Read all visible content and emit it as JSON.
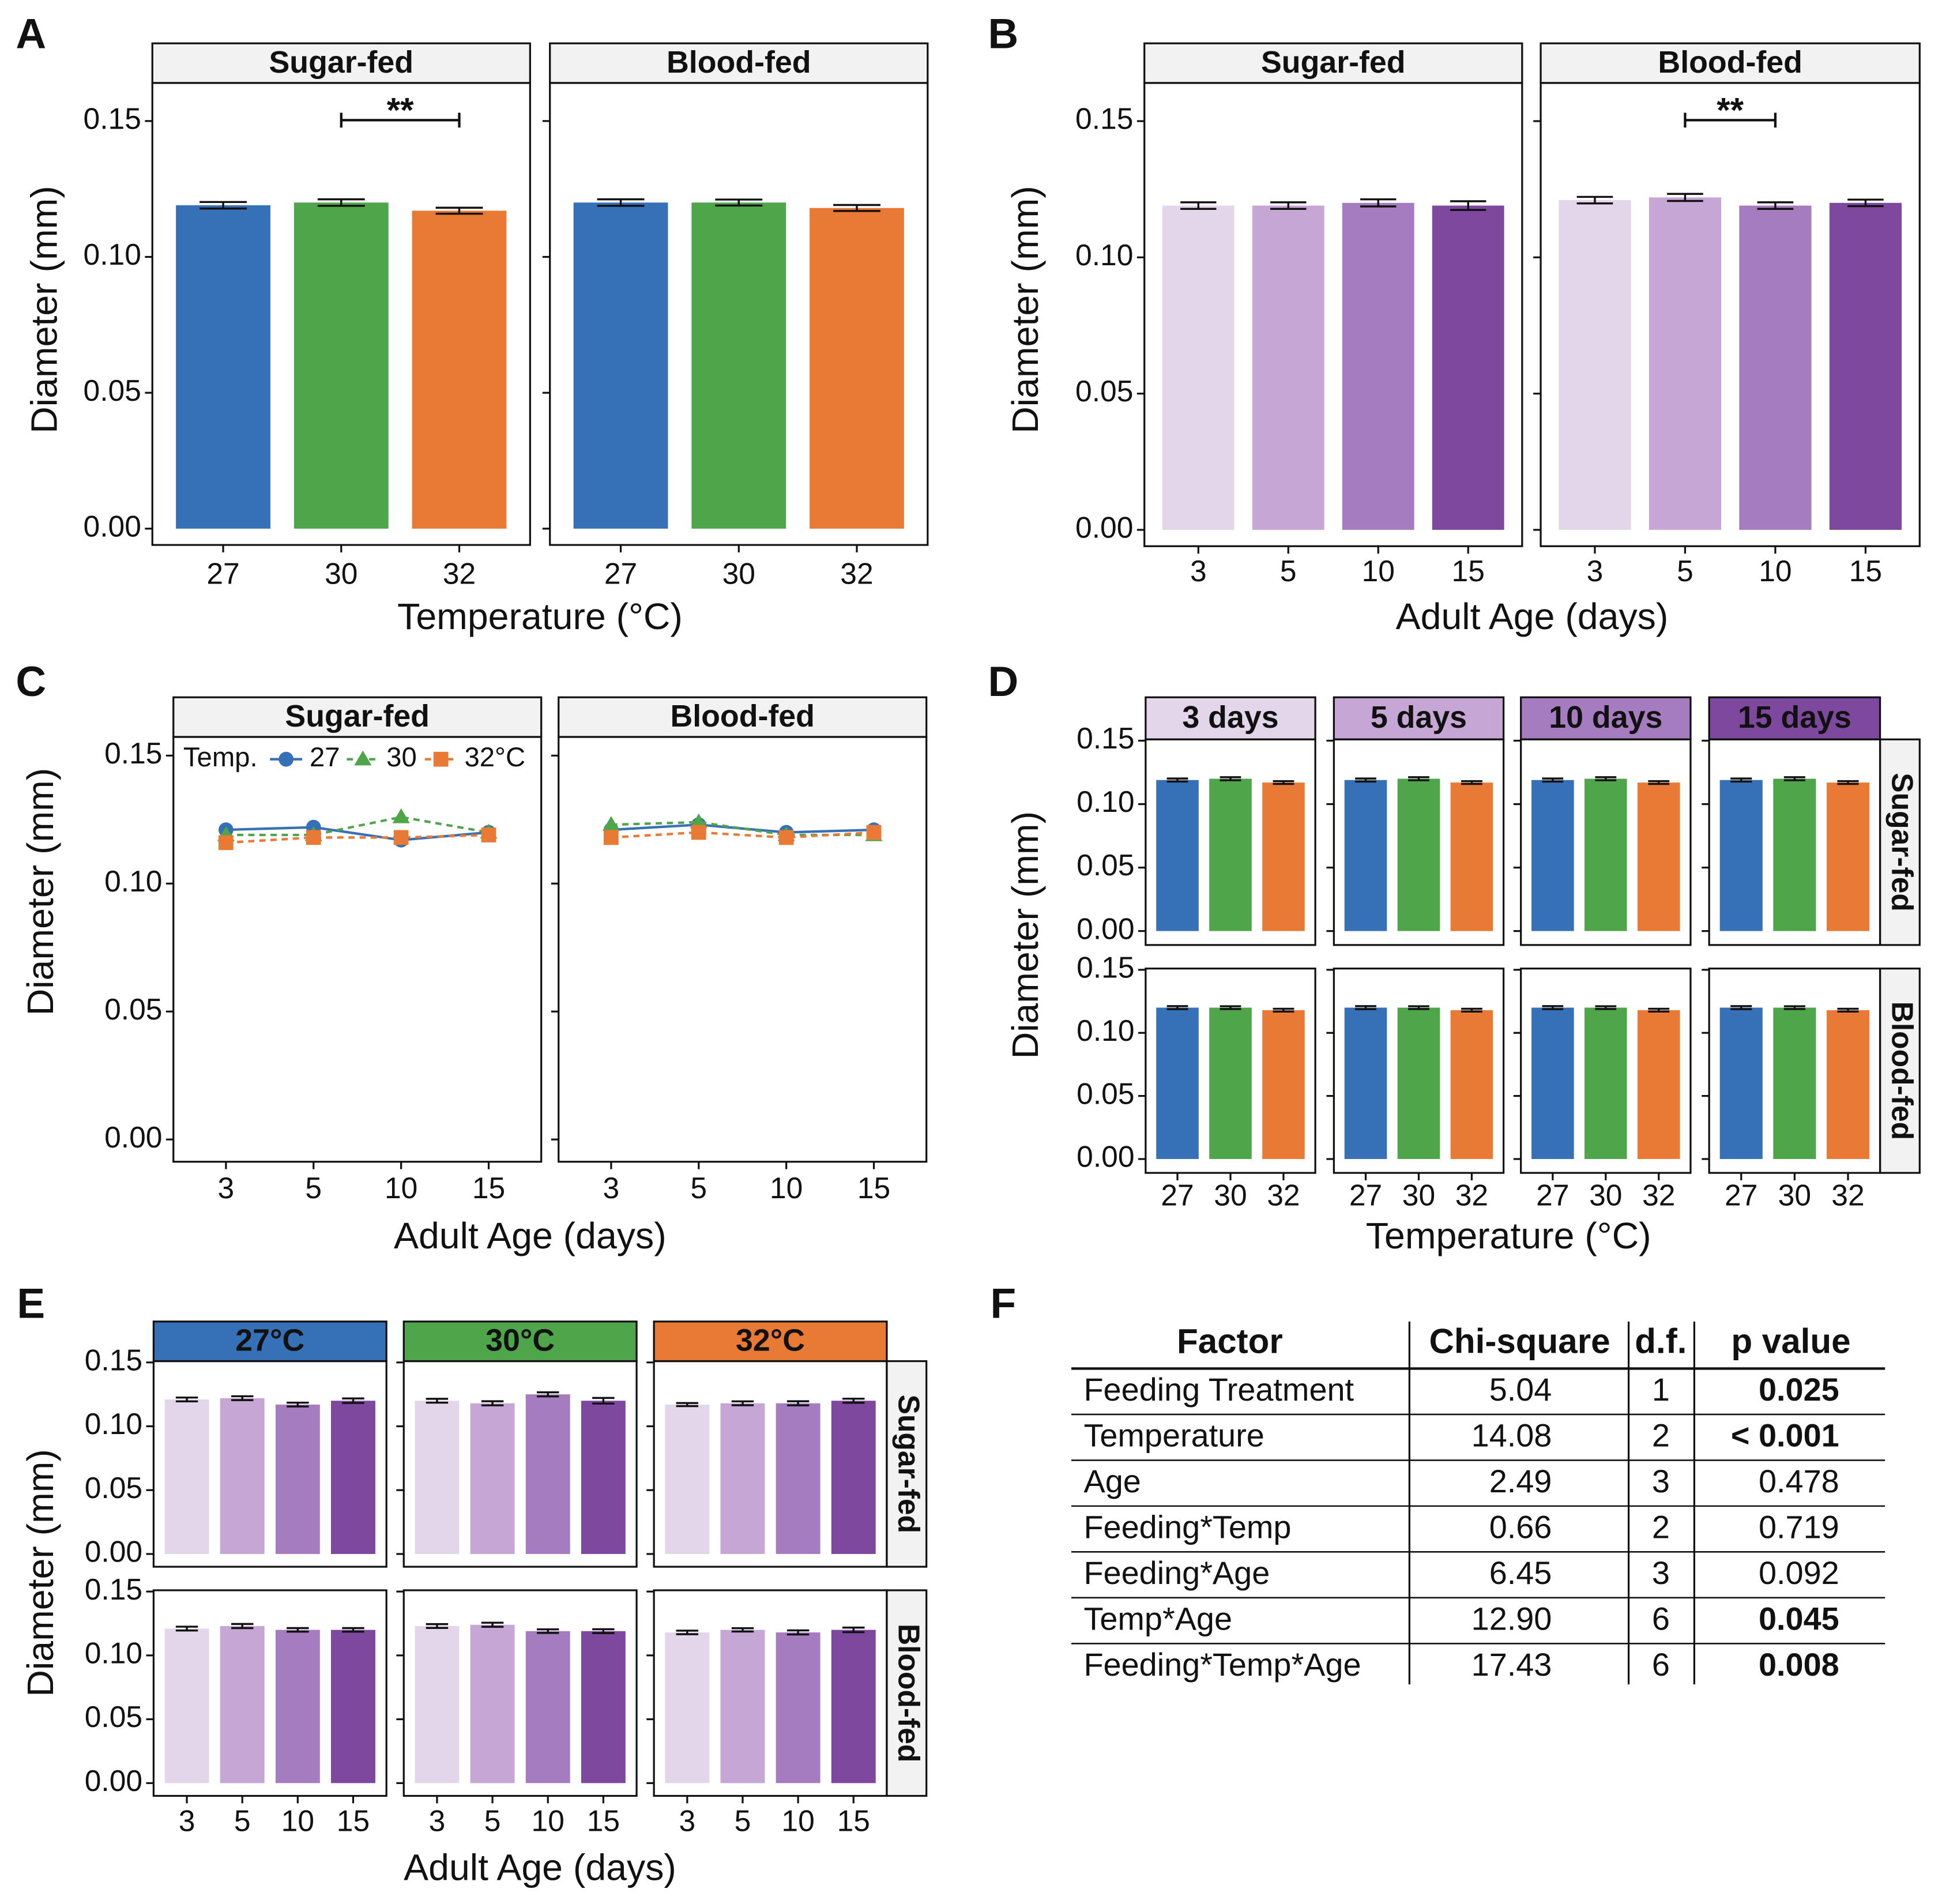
{
  "chart_data": [
    {
      "panel": "A",
      "type": "bar",
      "y_label": "Diameter (mm)",
      "x_label": "Temperature (°C)",
      "categories": [
        "27",
        "30",
        "32"
      ],
      "colors": [
        "#3670b6",
        "#4ea54a",
        "#e97a35"
      ],
      "ylim": [
        -0.006,
        0.164
      ],
      "yticks": [
        {
          "value": 0,
          "label": "0.00"
        },
        {
          "value": 0.05,
          "label": "0.05"
        },
        {
          "value": 0.1,
          "label": "0.10"
        },
        {
          "value": 0.15,
          "label": "0.15"
        }
      ],
      "facets": [
        {
          "name": "Sugar-fed",
          "values": [
            0.119,
            0.12,
            0.117
          ],
          "errors": [
            0.0012,
            0.0012,
            0.0011
          ]
        },
        {
          "name": "Blood-fed",
          "values": [
            0.12,
            0.12,
            0.118
          ],
          "errors": [
            0.0012,
            0.0011,
            0.0011
          ]
        }
      ],
      "annotation": {
        "text": "**",
        "facet": "Sugar-fed",
        "between": [
          "30",
          "32"
        ]
      }
    },
    {
      "panel": "B",
      "type": "bar",
      "y_label": "Diameter (mm)",
      "x_label": "Adult Age (days)",
      "categories": [
        "3",
        "5",
        "10",
        "15"
      ],
      "colors": [
        "#e3d5ea",
        "#c5a6d5",
        "#a57cbf",
        "#7f489f"
      ],
      "ylim": [
        -0.006,
        0.164
      ],
      "yticks": [
        {
          "value": 0,
          "label": "0.00"
        },
        {
          "value": 0.05,
          "label": "0.05"
        },
        {
          "value": 0.1,
          "label": "0.10"
        },
        {
          "value": 0.15,
          "label": "0.15"
        }
      ],
      "facets": [
        {
          "name": "Sugar-fed",
          "values": [
            0.119,
            0.119,
            0.12,
            0.119
          ],
          "errors": [
            0.0012,
            0.0012,
            0.0013,
            0.0016
          ]
        },
        {
          "name": "Blood-fed",
          "values": [
            0.121,
            0.122,
            0.119,
            0.12
          ],
          "errors": [
            0.0012,
            0.0013,
            0.0012,
            0.0012
          ]
        }
      ],
      "annotation": {
        "text": "**",
        "facet": "Blood-fed",
        "between": [
          "5",
          "10"
        ]
      }
    },
    {
      "panel": "C",
      "type": "line",
      "y_label": "Diameter (mm)",
      "x_label": "Adult Age (days)",
      "categories": [
        "3",
        "5",
        "10",
        "15"
      ],
      "legend_title": "Temp.",
      "ylim": [
        -0.0087,
        0.1573
      ],
      "yticks": [
        {
          "value": 0,
          "label": "0.00"
        },
        {
          "value": 0.05,
          "label": "0.05"
        },
        {
          "value": 0.1,
          "label": "0.10"
        },
        {
          "value": 0.15,
          "label": "0.15"
        }
      ],
      "series": [
        {
          "name": "27",
          "color": "#3670b6",
          "marker": "circle",
          "dashed": false
        },
        {
          "name": "30",
          "color": "#4ea54a",
          "marker": "triangle",
          "dashed": true
        },
        {
          "name": "32°C",
          "color": "#e97a35",
          "marker": "square",
          "dashed": true
        }
      ],
      "facets": [
        {
          "name": "Sugar-fed",
          "values": [
            [
              0.121,
              0.122,
              0.117,
              0.12
            ],
            [
              0.119,
              0.119,
              0.126,
              0.12
            ],
            [
              0.116,
              0.118,
              0.118,
              0.119
            ]
          ]
        },
        {
          "name": "Blood-fed",
          "values": [
            [
              0.121,
              0.123,
              0.12,
              0.121
            ],
            [
              0.123,
              0.124,
              0.119,
              0.119
            ],
            [
              0.118,
              0.12,
              0.118,
              0.12
            ]
          ]
        }
      ]
    },
    {
      "panel": "D",
      "type": "bar",
      "y_label": "Diameter (mm)",
      "x_label": "Temperature (°C)",
      "categories": [
        "27",
        "30",
        "32"
      ],
      "colors": [
        "#3670b6",
        "#4ea54a",
        "#e97a35"
      ],
      "ylim": [
        -0.011,
        0.151
      ],
      "yticks": [
        {
          "value": 0,
          "label": "0.00"
        },
        {
          "value": 0.05,
          "label": "0.05"
        },
        {
          "value": 0.1,
          "label": "0.10"
        },
        {
          "value": 0.15,
          "label": "0.15"
        }
      ],
      "columns": [
        {
          "name": "3 days",
          "color": "#e3d5ea"
        },
        {
          "name": "5 days",
          "color": "#c5a6d5"
        },
        {
          "name": "10 days",
          "color": "#a57cbf"
        },
        {
          "name": "15 days",
          "color": "#7f489f"
        }
      ],
      "rows": [
        "Sugar-fed",
        "Blood-fed"
      ],
      "values": [
        [
          [
            0.119,
            0.12,
            0.117
          ],
          [
            0.119,
            0.12,
            0.117
          ],
          [
            0.119,
            0.12,
            0.117
          ],
          [
            0.119,
            0.12,
            0.117
          ]
        ],
        [
          [
            0.12,
            0.12,
            0.118
          ],
          [
            0.12,
            0.12,
            0.118
          ],
          [
            0.12,
            0.12,
            0.118
          ],
          [
            0.12,
            0.12,
            0.118
          ]
        ]
      ],
      "errors": [
        [
          [
            0.0012,
            0.0012,
            0.0011
          ],
          [
            0.0012,
            0.0012,
            0.0011
          ],
          [
            0.0012,
            0.0012,
            0.0011
          ],
          [
            0.0012,
            0.0012,
            0.0011
          ]
        ],
        [
          [
            0.0012,
            0.0011,
            0.0011
          ],
          [
            0.0012,
            0.0011,
            0.0011
          ],
          [
            0.0012,
            0.0011,
            0.0011
          ],
          [
            0.0012,
            0.0011,
            0.0011
          ]
        ]
      ]
    },
    {
      "panel": "E",
      "type": "bar",
      "y_label": "Diameter (mm)",
      "x_label": "Adult Age (days)",
      "categories": [
        "3",
        "5",
        "10",
        "15"
      ],
      "colors": [
        "#e3d5ea",
        "#c5a6d5",
        "#a57cbf",
        "#7f489f"
      ],
      "ylim": [
        -0.01,
        0.151
      ],
      "yticks": [
        {
          "value": 0,
          "label": "0.00"
        },
        {
          "value": 0.05,
          "label": "0.05"
        },
        {
          "value": 0.1,
          "label": "0.10"
        },
        {
          "value": 0.15,
          "label": "0.15"
        }
      ],
      "columns": [
        {
          "name": "27°C",
          "color": "#3670b6"
        },
        {
          "name": "30°C",
          "color": "#4ea54a"
        },
        {
          "name": "32°C",
          "color": "#e97a35"
        }
      ],
      "rows": [
        "Sugar-fed",
        "Blood-fed"
      ],
      "values": [
        [
          [
            0.121,
            0.122,
            0.117,
            0.12
          ],
          [
            0.12,
            0.118,
            0.125,
            0.12
          ],
          [
            0.117,
            0.118,
            0.118,
            0.12
          ]
        ],
        [
          [
            0.121,
            0.123,
            0.12,
            0.12
          ],
          [
            0.123,
            0.124,
            0.119,
            0.119
          ],
          [
            0.118,
            0.12,
            0.118,
            0.12
          ]
        ]
      ],
      "errors": [
        [
          [
            0.0015,
            0.0015,
            0.0015,
            0.0018
          ],
          [
            0.0015,
            0.0016,
            0.0016,
            0.0022
          ],
          [
            0.0012,
            0.0015,
            0.0016,
            0.0016
          ]
        ],
        [
          [
            0.0015,
            0.0016,
            0.0014,
            0.0014
          ],
          [
            0.0015,
            0.0016,
            0.0014,
            0.0015
          ],
          [
            0.0014,
            0.0013,
            0.0016,
            0.0018
          ]
        ]
      ]
    }
  ],
  "table": {
    "panel": "F",
    "header": [
      "Factor",
      "Chi-square",
      "d.f.",
      "p value"
    ],
    "rows": [
      [
        "Feeding Treatment",
        "5.04",
        "1",
        "0.025"
      ],
      [
        "Temperature",
        "14.08",
        "2",
        "< 0.001"
      ],
      [
        "Age",
        "2.49",
        "3",
        "0.478"
      ],
      [
        "Feeding*Temp",
        "0.66",
        "2",
        "0.719"
      ],
      [
        "Feeding*Age",
        "6.45",
        "3",
        "0.092"
      ],
      [
        "Temp*Age",
        "12.90",
        "6",
        "0.045"
      ],
      [
        "Feeding*Temp*Age",
        "17.43",
        "6",
        "0.008"
      ]
    ],
    "bold_p": [
      true,
      true,
      false,
      false,
      false,
      true,
      true
    ]
  }
}
